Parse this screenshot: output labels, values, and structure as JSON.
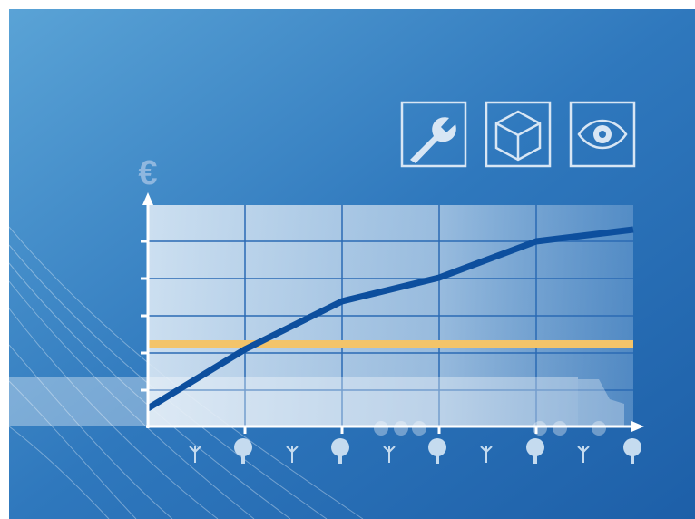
{
  "axis_label": "€"
}
